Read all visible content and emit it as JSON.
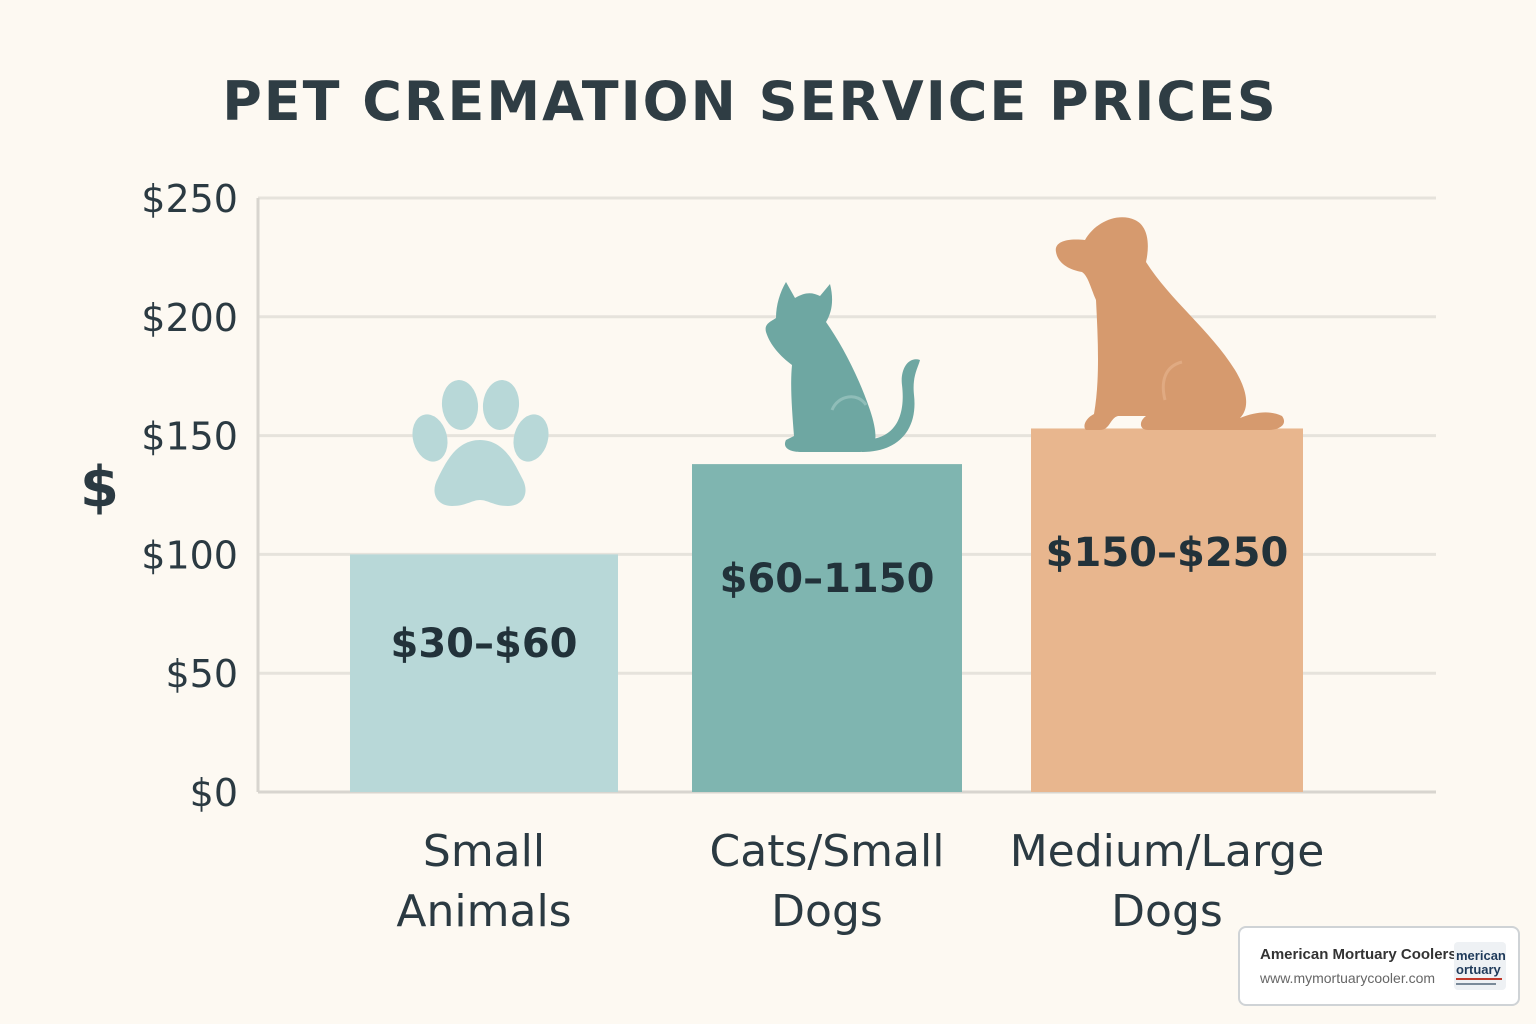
{
  "chart_data": {
    "type": "bar",
    "title": "PET CREMATION SERVICE PRICES",
    "ylabel": "$",
    "ylim": [
      0,
      250
    ],
    "yticks": [
      "$0",
      "$50",
      "$100",
      "$150",
      "$200",
      "$250"
    ],
    "ytick_values": [
      0,
      50,
      100,
      150,
      200,
      250
    ],
    "grid": true,
    "categories": [
      "Small\nAnimals",
      "Cats/Small\nDogs",
      "Medium/Large\nDogs"
    ],
    "values": [
      100,
      138,
      153
    ],
    "data_labels": [
      "$30–$60",
      "$60–1150",
      "$150–$250"
    ],
    "colors": [
      "#b8d8d8",
      "#7fb5b0",
      "#e8b68e"
    ],
    "icons": [
      "paw-icon",
      "cat-icon",
      "dog-icon"
    ],
    "icon_colors": [
      "#b8d8d8",
      "#6ea7a2",
      "#d69a6e"
    ]
  },
  "watermark": {
    "name": "American Mortuary Coolers",
    "url": "www.mymortuarycooler.com",
    "logo_text": "merican ortuary"
  }
}
